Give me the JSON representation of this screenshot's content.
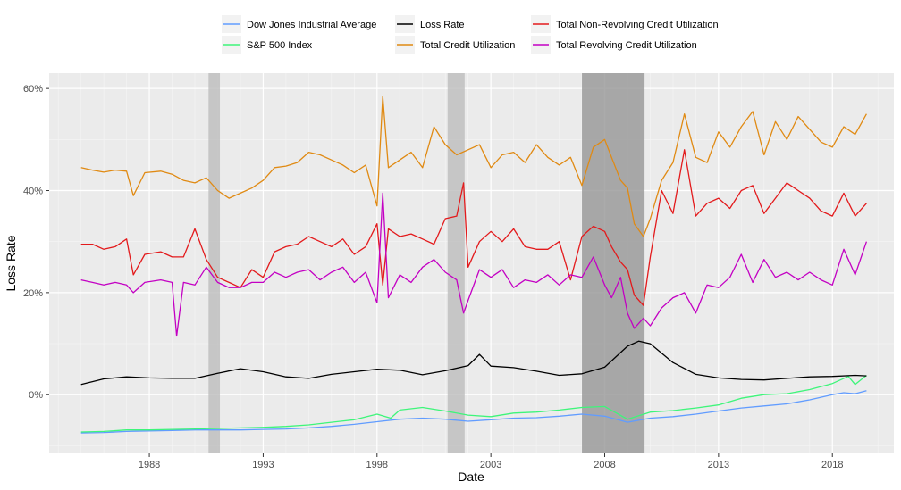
{
  "chart_data": {
    "type": "line",
    "title": "",
    "xlabel": "Date",
    "ylabel": "Loss Rate",
    "xlim": [
      1983.6,
      2020.7
    ],
    "ylim": [
      -11.5,
      63
    ],
    "yticks": [
      {
        "value": 0,
        "label": "0%"
      },
      {
        "value": 20,
        "label": "20%"
      },
      {
        "value": 40,
        "label": "40%"
      },
      {
        "value": 60,
        "label": "60%"
      }
    ],
    "xticks": [
      {
        "value": 1988,
        "label": "1988"
      },
      {
        "value": 1993,
        "label": "1993"
      },
      {
        "value": 1998,
        "label": "1998"
      },
      {
        "value": 2003,
        "label": "2003"
      },
      {
        "value": 2008,
        "label": "2008"
      },
      {
        "value": 2013,
        "label": "2013"
      },
      {
        "value": 2018,
        "label": "2018"
      }
    ],
    "grid": true,
    "legend_position": "top",
    "recessions": [
      {
        "start": 1990.6,
        "end": 1991.1,
        "color": "#bdbdbd"
      },
      {
        "start": 2001.1,
        "end": 2001.85,
        "color": "#bdbdbd"
      },
      {
        "start": 2007.0,
        "end": 2009.75,
        "color": "#969696"
      }
    ],
    "series": [
      {
        "name": "Dow Jones Industrial Average",
        "color": "#619CFF",
        "x": [
          1985,
          1986,
          1987,
          1988,
          1989,
          1990,
          1991,
          1992,
          1993,
          1994,
          1995,
          1996,
          1997,
          1998,
          1999,
          2000,
          2001,
          2002,
          2003,
          2004,
          2005,
          2006,
          2007,
          2008,
          2009,
          2010,
          2011,
          2012,
          2013,
          2014,
          2015,
          2016,
          2017,
          2018,
          2018.5,
          2019,
          2019.5
        ],
        "values": [
          -7.5,
          -7.4,
          -7.2,
          -7.1,
          -7.0,
          -6.9,
          -6.9,
          -6.9,
          -6.8,
          -6.7,
          -6.5,
          -6.2,
          -5.8,
          -5.3,
          -4.8,
          -4.6,
          -4.8,
          -5.2,
          -4.9,
          -4.6,
          -4.5,
          -4.2,
          -3.8,
          -4.2,
          -5.4,
          -4.6,
          -4.3,
          -3.8,
          -3.2,
          -2.6,
          -2.2,
          -1.8,
          -1.0,
          0.0,
          0.4,
          0.2,
          0.8
        ]
      },
      {
        "name": "S&P 500 Index",
        "color": "#3EF57A",
        "x": [
          1985,
          1986,
          1987,
          1988,
          1989,
          1990,
          1991,
          1992,
          1993,
          1994,
          1995,
          1996,
          1997,
          1998,
          1998.6,
          1999,
          2000,
          2001,
          2002,
          2003,
          2004,
          2005,
          2006,
          2007,
          2008,
          2009,
          2010,
          2011,
          2012,
          2013,
          2014,
          2015,
          2016,
          2017,
          2018,
          2018.7,
          2019,
          2019.5
        ],
        "values": [
          -7.3,
          -7.2,
          -6.9,
          -6.9,
          -6.8,
          -6.7,
          -6.6,
          -6.5,
          -6.4,
          -6.2,
          -5.9,
          -5.4,
          -4.9,
          -3.8,
          -4.6,
          -3.0,
          -2.5,
          -3.2,
          -4.0,
          -4.3,
          -3.6,
          -3.4,
          -3.0,
          -2.5,
          -2.3,
          -4.8,
          -3.4,
          -3.1,
          -2.6,
          -2.0,
          -0.7,
          0.0,
          0.2,
          1.0,
          2.2,
          3.6,
          2.0,
          3.8
        ]
      },
      {
        "name": "Loss Rate",
        "color": "#000000",
        "x": [
          1985,
          1986,
          1987,
          1988,
          1989,
          1990,
          1991,
          1992,
          1993,
          1994,
          1995,
          1996,
          1997,
          1998,
          1999,
          2000,
          2001,
          2002,
          2002.5,
          2003,
          2004,
          2005,
          2006,
          2007,
          2008,
          2009,
          2009.5,
          2010,
          2011,
          2012,
          2013,
          2014,
          2015,
          2016,
          2017,
          2018,
          2019,
          2019.5
        ],
        "values": [
          2.0,
          3.1,
          3.5,
          3.3,
          3.2,
          3.2,
          4.2,
          5.1,
          4.5,
          3.5,
          3.2,
          4.0,
          4.5,
          5.0,
          4.8,
          3.9,
          4.7,
          5.7,
          7.9,
          5.6,
          5.3,
          4.6,
          3.8,
          4.1,
          5.4,
          9.5,
          10.5,
          10.0,
          6.3,
          4.0,
          3.3,
          3.0,
          2.9,
          3.2,
          3.5,
          3.6,
          3.8,
          3.7
        ]
      },
      {
        "name": "Total Credit Utilization",
        "color": "#E08A13",
        "x": [
          1985,
          1985.5,
          1986,
          1986.5,
          1987,
          1987.3,
          1987.8,
          1988.5,
          1989,
          1989.5,
          1990,
          1990.5,
          1991,
          1991.5,
          1992,
          1992.5,
          1993,
          1993.5,
          1994,
          1994.5,
          1995,
          1995.5,
          1996,
          1996.5,
          1997,
          1997.5,
          1998,
          1998.25,
          1998.5,
          1999,
          1999.5,
          2000,
          2000.5,
          2001,
          2001.5,
          2002,
          2002.5,
          2003,
          2003.5,
          2004,
          2004.5,
          2005,
          2005.5,
          2006,
          2006.5,
          2007,
          2007.5,
          2008,
          2008.3,
          2008.7,
          2009,
          2009.3,
          2009.7,
          2010,
          2010.5,
          2011,
          2011.5,
          2012,
          2012.5,
          2013,
          2013.5,
          2014,
          2014.5,
          2015,
          2015.5,
          2016,
          2016.5,
          2017,
          2017.5,
          2018,
          2018.5,
          2019,
          2019.5
        ],
        "values": [
          44.5,
          44.0,
          43.6,
          44.0,
          43.8,
          39.0,
          43.5,
          43.8,
          43.2,
          42.0,
          41.5,
          42.5,
          40.0,
          38.5,
          39.5,
          40.5,
          42.0,
          44.5,
          44.8,
          45.5,
          47.5,
          47.0,
          46.0,
          45.0,
          43.5,
          45.0,
          37.0,
          58.5,
          44.5,
          46.0,
          47.5,
          44.5,
          52.5,
          49.0,
          47.0,
          48.0,
          49.0,
          44.5,
          47.0,
          47.5,
          45.5,
          49.0,
          46.5,
          45.0,
          46.5,
          41.0,
          48.5,
          50.0,
          46.5,
          42.0,
          40.5,
          33.5,
          31.0,
          34.5,
          42.0,
          45.5,
          55.0,
          46.5,
          45.5,
          51.5,
          48.5,
          52.5,
          55.5,
          47.0,
          53.5,
          50.0,
          54.5,
          52.0,
          49.5,
          48.5,
          52.5,
          51.0,
          55.0
        ]
      },
      {
        "name": "Total Non-Revolving Credit Utilization",
        "color": "#E31A1C",
        "x": [
          1985,
          1985.5,
          1986,
          1986.5,
          1987,
          1987.3,
          1987.8,
          1988.5,
          1989,
          1989.5,
          1990,
          1990.5,
          1991,
          1991.5,
          1992,
          1992.5,
          1993,
          1993.5,
          1994,
          1994.5,
          1995,
          1995.5,
          1996,
          1996.5,
          1997,
          1997.5,
          1998,
          1998.25,
          1998.5,
          1999,
          1999.5,
          2000,
          2000.5,
          2001,
          2001.5,
          2001.8,
          2002,
          2002.5,
          2003,
          2003.5,
          2004,
          2004.5,
          2005,
          2005.5,
          2006,
          2006.5,
          2007,
          2007.5,
          2008,
          2008.3,
          2008.7,
          2009,
          2009.3,
          2009.7,
          2010,
          2010.5,
          2011,
          2011.5,
          2012,
          2012.5,
          2013,
          2013.5,
          2014,
          2014.5,
          2015,
          2015.5,
          2016,
          2016.5,
          2017,
          2017.5,
          2018,
          2018.5,
          2019,
          2019.5
        ],
        "values": [
          29.5,
          29.5,
          28.5,
          29.0,
          30.5,
          23.5,
          27.5,
          28.0,
          27.0,
          27.0,
          32.5,
          26.5,
          23.0,
          22.0,
          21.0,
          24.5,
          23.0,
          28.0,
          29.0,
          29.5,
          31.0,
          30.0,
          29.0,
          30.5,
          27.5,
          29.0,
          33.5,
          21.5,
          32.5,
          31.0,
          31.5,
          30.5,
          29.5,
          34.5,
          35.0,
          41.5,
          25.0,
          30.0,
          32.0,
          30.0,
          32.5,
          29.0,
          28.5,
          28.5,
          30.0,
          22.5,
          31.0,
          33.0,
          32.0,
          29.0,
          26.0,
          24.5,
          19.5,
          17.5,
          27.0,
          40.0,
          35.5,
          48.0,
          35.0,
          37.5,
          38.5,
          36.5,
          40.0,
          41.0,
          35.5,
          38.5,
          41.5,
          40.0,
          38.5,
          36.0,
          35.0,
          39.5,
          35.0,
          37.5
        ]
      },
      {
        "name": "Total Revolving Credit Utilization",
        "color": "#C300C3",
        "x": [
          1985,
          1985.5,
          1986,
          1986.5,
          1987,
          1987.3,
          1987.8,
          1988.5,
          1989,
          1989.2,
          1989.5,
          1990,
          1990.5,
          1991,
          1991.5,
          1992,
          1992.5,
          1993,
          1993.5,
          1994,
          1994.5,
          1995,
          1995.5,
          1996,
          1996.5,
          1997,
          1997.5,
          1998,
          1998.25,
          1998.5,
          1999,
          1999.5,
          2000,
          2000.5,
          2001,
          2001.5,
          2001.8,
          2002,
          2002.5,
          2003,
          2003.5,
          2004,
          2004.5,
          2005,
          2005.5,
          2006,
          2006.5,
          2007,
          2007.5,
          2008,
          2008.3,
          2008.7,
          2009,
          2009.3,
          2009.7,
          2010,
          2010.5,
          2011,
          2011.5,
          2012,
          2012.5,
          2013,
          2013.5,
          2014,
          2014.5,
          2015,
          2015.5,
          2016,
          2016.5,
          2017,
          2017.5,
          2018,
          2018.5,
          2019,
          2019.5
        ],
        "values": [
          22.5,
          22.0,
          21.5,
          22.0,
          21.5,
          20.0,
          22.0,
          22.5,
          22.0,
          11.5,
          22.0,
          21.5,
          25.0,
          22.0,
          21.0,
          21.0,
          22.0,
          22.0,
          24.0,
          23.0,
          24.0,
          24.5,
          22.5,
          24.0,
          25.0,
          22.0,
          24.0,
          18.0,
          39.5,
          19.0,
          23.5,
          22.0,
          25.0,
          26.5,
          24.0,
          22.5,
          16.0,
          18.5,
          24.5,
          23.0,
          24.5,
          21.0,
          22.5,
          22.0,
          23.5,
          21.5,
          23.5,
          23.0,
          27.0,
          21.5,
          19.0,
          23.0,
          16.0,
          13.0,
          15.0,
          13.5,
          17.0,
          19.0,
          20.0,
          16.0,
          21.5,
          21.0,
          23.0,
          27.5,
          22.0,
          26.5,
          23.0,
          24.0,
          22.5,
          24.0,
          22.5,
          21.5,
          28.5,
          23.5,
          30.0
        ]
      }
    ]
  }
}
